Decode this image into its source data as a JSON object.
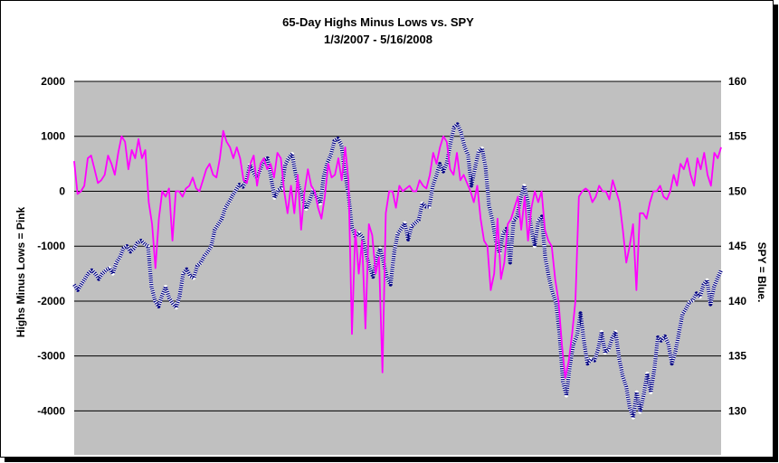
{
  "chart_data": {
    "type": "line",
    "title": "65-Day Highs Minus Lows vs. SPY",
    "subtitle": "1/3/2007  - 5/16/2008",
    "ylabel_left": "Highs Minus Lows = Pink",
    "ylabel_right": "SPY = Blue.",
    "y_left": {
      "min": -4800,
      "max": 2000,
      "ticks": [
        2000,
        1000,
        0,
        -1000,
        -2000,
        -3000,
        -4000
      ]
    },
    "y_right": {
      "min": 126,
      "max": 160,
      "ticks": [
        160,
        155,
        150,
        145,
        140,
        135,
        130
      ]
    },
    "grid": true,
    "legend": "none",
    "colors": {
      "plot_bg": "#c0c0c0",
      "highs_minus_lows": "#ff00ff",
      "spy": "#000080",
      "grid": "#000000"
    },
    "series": [
      {
        "name": "Highs Minus Lows",
        "axis": "left",
        "values": [
          550,
          -50,
          0,
          100,
          600,
          650,
          400,
          150,
          200,
          300,
          650,
          500,
          300,
          700,
          1000,
          900,
          400,
          750,
          600,
          950,
          600,
          750,
          -200,
          -600,
          -1400,
          -500,
          0,
          -100,
          50,
          -900,
          0,
          0,
          -100,
          50,
          100,
          250,
          50,
          0,
          200,
          400,
          500,
          300,
          250,
          600,
          1100,
          900,
          800,
          600,
          800,
          600,
          200,
          150,
          500,
          650,
          100,
          500,
          600,
          400,
          500,
          250,
          700,
          600,
          0,
          -400,
          100,
          -400,
          300,
          -700,
          0,
          400,
          100,
          0,
          -300,
          -500,
          -100,
          500,
          250,
          300,
          600,
          200,
          800,
          200,
          -2600,
          -700,
          -1500,
          -900,
          -2500,
          -600,
          -800,
          -1500,
          -1200,
          -3300,
          -400,
          0,
          0,
          -300,
          100,
          0,
          50,
          100,
          0,
          0,
          200,
          100,
          50,
          300,
          700,
          500,
          800,
          1000,
          900,
          400,
          300,
          700,
          200,
          300,
          150,
          0,
          -200,
          100,
          -500,
          -900,
          -1000,
          -1800,
          -1500,
          -500,
          -1600,
          -1300,
          -600,
          -500,
          -300,
          -100,
          -700,
          -100,
          -900,
          -300,
          0,
          -200,
          0,
          -700,
          -900,
          -1000,
          -1600,
          -2000,
          -2800,
          -3400,
          -3100,
          -2600,
          -2000,
          -100,
          0,
          50,
          0,
          -200,
          -100,
          100,
          0,
          0,
          -150,
          200,
          0,
          -200,
          -700,
          -1300,
          -1000,
          -600,
          -1800,
          -400,
          -400,
          -500,
          -200,
          0,
          0,
          100,
          -100,
          -150,
          0,
          300,
          100,
          500,
          400,
          600,
          300,
          100,
          600,
          400,
          700,
          300,
          100,
          700,
          600,
          800
        ]
      },
      {
        "name": "SPY",
        "axis": "right",
        "values": [
          141.5,
          141,
          141.5,
          142,
          142.5,
          142.8,
          142.5,
          142,
          142.5,
          142.8,
          143,
          142.5,
          143.5,
          144,
          144.8,
          145,
          144.5,
          144.8,
          145.3,
          145.5,
          145.2,
          145,
          141.3,
          140,
          139.5,
          140.5,
          141.3,
          140.3,
          139.8,
          139.4,
          140.5,
          142.5,
          142.9,
          142.3,
          142.1,
          143.2,
          143.5,
          144.1,
          144.5,
          145,
          146.5,
          147,
          147.5,
          148.5,
          149,
          149.6,
          150.1,
          150.6,
          150.4,
          151,
          152.4,
          151.7,
          151.2,
          152.1,
          152.8,
          153,
          151.2,
          149.4,
          150.1,
          150.3,
          152.4,
          153,
          153.4,
          151.5,
          150.3,
          149.4,
          148.4,
          149.2,
          150.1,
          149.4,
          148.9,
          151.4,
          152.6,
          153.3,
          154.6,
          154.8,
          154.2,
          151.7,
          149.7,
          146.7,
          145.9,
          146.2,
          145.8,
          144.4,
          143.1,
          142.2,
          143.9,
          144.8,
          143.5,
          142.1,
          141.5,
          144.4,
          146.1,
          146.6,
          147.1,
          145.6,
          146.8,
          147.1,
          147.4,
          148.9,
          148.6,
          148.6,
          150.5,
          151.4,
          152.5,
          151.8,
          152.6,
          154.3,
          155.8,
          156.1,
          155.4,
          154.1,
          153.3,
          150.5,
          152.1,
          153.6,
          153.9,
          152.2,
          148.7,
          147.3,
          145.3,
          144.4,
          146.2,
          146.6,
          143.5,
          147.3,
          147.7,
          149.4,
          150.5,
          149.1,
          146.6,
          145,
          147.3,
          147.7,
          143.9,
          142.2,
          140.8,
          139.9,
          137.1,
          132.7,
          131.4,
          134.1,
          136.1,
          136.8,
          138.9,
          136.3,
          134.3,
          134.7,
          134.6,
          135.6,
          137.2,
          135.3,
          135.6,
          136.6,
          137.2,
          134.8,
          133.2,
          132.2,
          130.3,
          129.4,
          131.7,
          129.9,
          131.5,
          133.4,
          131.7,
          133.8,
          136.7,
          136.4,
          136.8,
          136.1,
          134.3,
          135.4,
          137.1,
          138.8,
          139.3,
          139.9,
          140.1,
          140.7,
          140.4,
          141.5,
          141.9,
          139.7,
          141.3,
          142.1,
          142.8
        ]
      }
    ]
  }
}
